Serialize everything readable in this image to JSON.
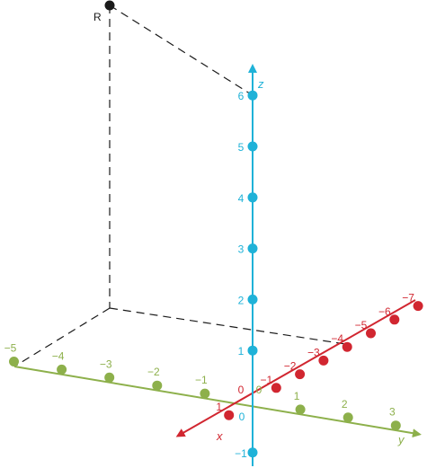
{
  "point": {
    "label": "R"
  },
  "axes": {
    "z": {
      "name": "z",
      "color": "#1fb2d8",
      "ticks": [
        {
          "value": -1,
          "label": "−1"
        },
        {
          "value": 0,
          "label": "0"
        },
        {
          "value": 1,
          "label": "1"
        },
        {
          "value": 2,
          "label": "2"
        },
        {
          "value": 3,
          "label": "3"
        },
        {
          "value": 4,
          "label": "4"
        },
        {
          "value": 5,
          "label": "5"
        },
        {
          "value": 6,
          "label": "6"
        }
      ]
    },
    "x": {
      "name": "x",
      "color": "#d12630",
      "ticks": [
        {
          "value": 1,
          "label": "1"
        },
        {
          "value": 0,
          "label": "0"
        },
        {
          "value": -1,
          "label": "−1"
        },
        {
          "value": -2,
          "label": "−2"
        },
        {
          "value": -3,
          "label": "−3"
        },
        {
          "value": -4,
          "label": "−4"
        },
        {
          "value": -5,
          "label": "−5"
        },
        {
          "value": -6,
          "label": "−6"
        },
        {
          "value": -7,
          "label": "−7"
        }
      ]
    },
    "y": {
      "name": "y",
      "color": "#8db04b",
      "ticks": [
        {
          "value": -5,
          "label": "−5"
        },
        {
          "value": -4,
          "label": "−4"
        },
        {
          "value": -3,
          "label": "−3"
        },
        {
          "value": -2,
          "label": "−2"
        },
        {
          "value": -1,
          "label": "−1"
        },
        {
          "value": 0,
          "label": "0"
        },
        {
          "value": 1,
          "label": "1"
        },
        {
          "value": 2,
          "label": "2"
        },
        {
          "value": 3,
          "label": "3"
        }
      ]
    }
  },
  "colors": {
    "point": "#1a1a1a",
    "dashes": "#1a1a1a"
  }
}
